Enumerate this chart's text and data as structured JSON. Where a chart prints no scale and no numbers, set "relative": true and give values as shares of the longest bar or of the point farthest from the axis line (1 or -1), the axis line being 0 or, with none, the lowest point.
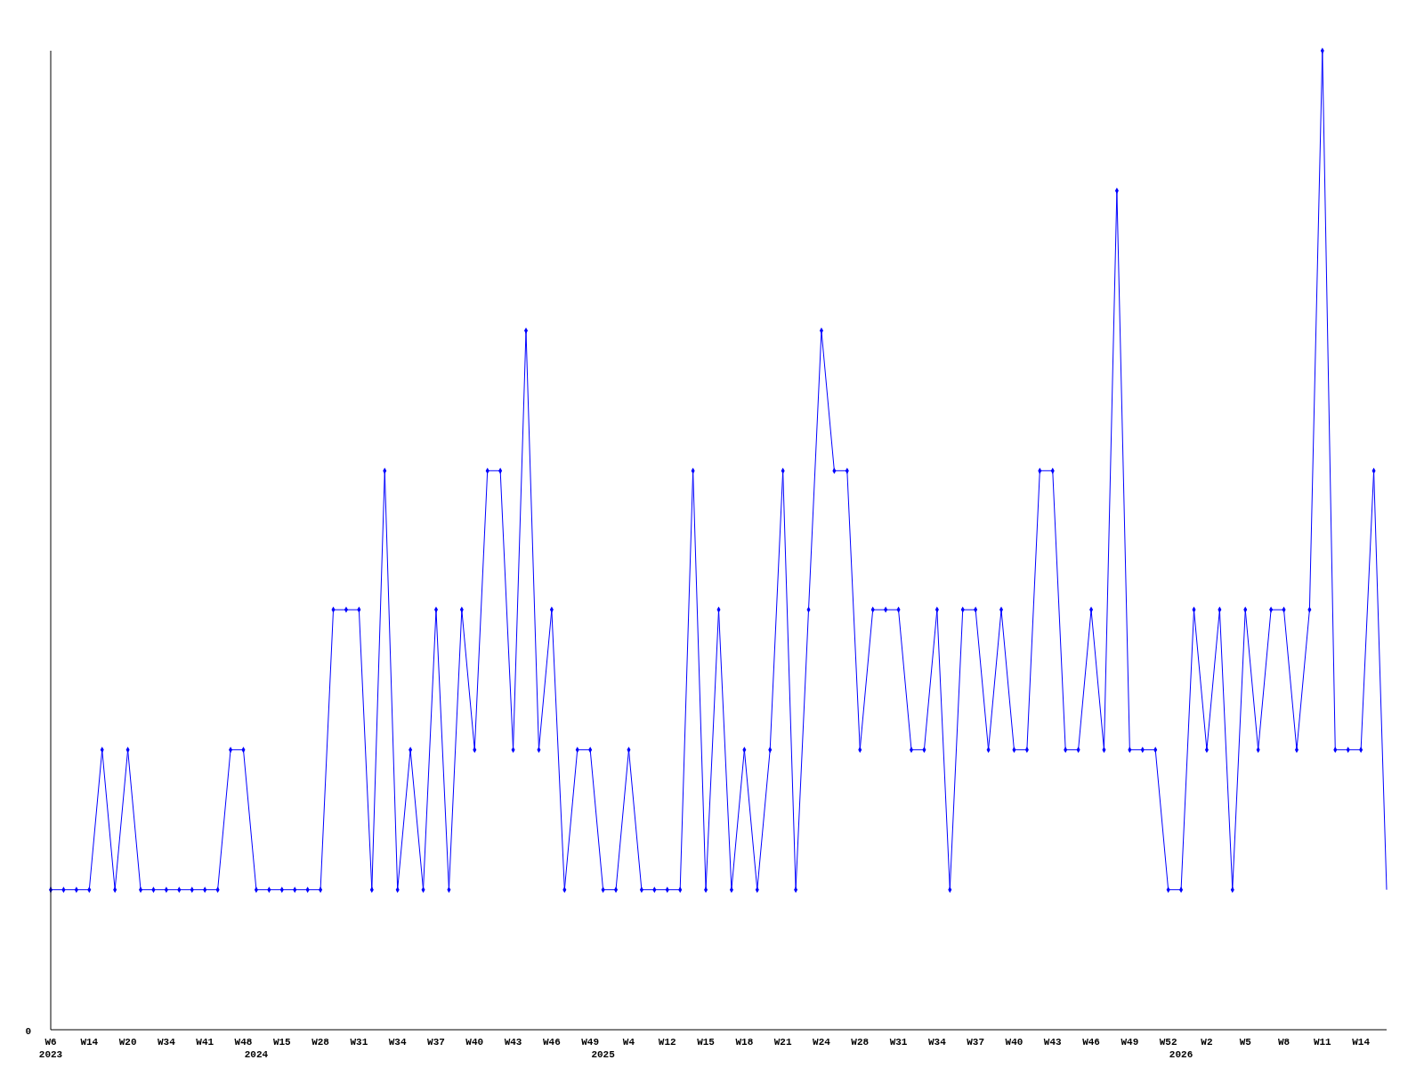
{
  "chart_data": {
    "type": "line",
    "relative": true,
    "marker": "diamond",
    "annotations": [
      "0"
    ],
    "categories": [
      "W6\n2023",
      null,
      null,
      "W14",
      null,
      null,
      "W20",
      null,
      null,
      "W34",
      null,
      null,
      "W41",
      null,
      null,
      "W48",
      "\n2024",
      null,
      "W15",
      null,
      null,
      "W28",
      null,
      null,
      "W31",
      null,
      null,
      "W34",
      null,
      null,
      "W37",
      null,
      null,
      "W40",
      null,
      null,
      "W43",
      null,
      null,
      "W46",
      null,
      null,
      "W49",
      "\n2025",
      null,
      "W4",
      null,
      null,
      "W12",
      null,
      null,
      "W15",
      null,
      null,
      "W18",
      null,
      null,
      "W21",
      null,
      null,
      "W24",
      null,
      null,
      "W28",
      null,
      null,
      "W31",
      null,
      null,
      "W34",
      null,
      null,
      "W37",
      null,
      null,
      "W40",
      null,
      null,
      "W43",
      null,
      null,
      "W46",
      null,
      null,
      "W49",
      null,
      null,
      "W52",
      "\n2026",
      null,
      "W2",
      null,
      null,
      "W5",
      null,
      null,
      "W8",
      null,
      null,
      "W11",
      null,
      null,
      "W14",
      null,
      null
    ],
    "series": [
      {
        "color": "#0000ff",
        "values": [
          0.143,
          0.143,
          0.143,
          0.143,
          0.286,
          0.143,
          0.286,
          0.143,
          0.143,
          0.143,
          0.143,
          0.143,
          0.143,
          0.143,
          0.286,
          0.286,
          0.143,
          0.143,
          0.143,
          0.143,
          0.143,
          0.143,
          0.429,
          0.429,
          0.429,
          0.143,
          0.571,
          0.143,
          0.286,
          0.143,
          0.429,
          0.143,
          0.429,
          0.286,
          0.571,
          0.571,
          0.286,
          0.714,
          0.286,
          0.429,
          0.143,
          0.286,
          0.286,
          0.143,
          0.143,
          0.286,
          0.143,
          0.143,
          0.143,
          0.143,
          0.571,
          0.143,
          0.429,
          0.143,
          0.286,
          0.143,
          0.286,
          0.571,
          0.143,
          0.429,
          0.714,
          0.571,
          0.571,
          0.286,
          0.429,
          0.429,
          0.429,
          0.286,
          0.286,
          0.429,
          0.143,
          0.429,
          0.429,
          0.286,
          0.429,
          0.286,
          0.286,
          0.571,
          0.571,
          0.286,
          0.286,
          0.429,
          0.286,
          0.857,
          0.286,
          0.286,
          0.286,
          0.143,
          0.143,
          0.429,
          0.286,
          0.429,
          0.143,
          0.429,
          0.286,
          0.429,
          0.429,
          0.286,
          0.429,
          1,
          0.286,
          0.286,
          0.286,
          0.571,
          0.143
        ]
      }
    ]
  }
}
